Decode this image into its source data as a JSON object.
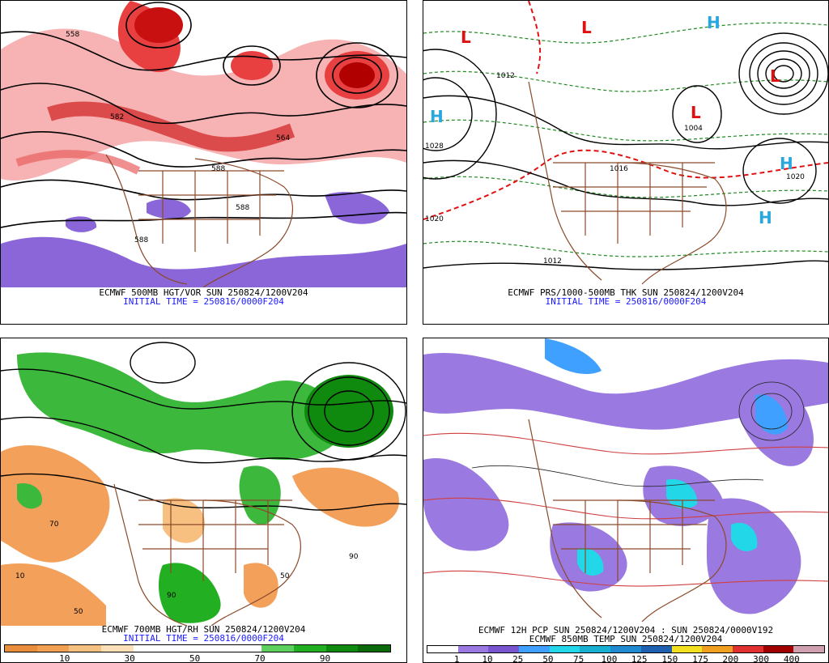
{
  "panels": {
    "top_left": {
      "caption": "ECMWF 500MB HGT/VOR SUN 250824/1200V204",
      "init": "INITIAL TIME = 250816/0000F204",
      "contour_labels": [
        "558",
        "582",
        "564",
        "588",
        "588",
        "588"
      ]
    },
    "top_right": {
      "caption": "ECMWF PRS/1000-500MB THK SUN 250824/1200V204",
      "init": "INITIAL TIME = 250816/0000F204",
      "pressure_labels": [
        "1012",
        "1004",
        "1016",
        "1020",
        "1012",
        "1028",
        "1020"
      ],
      "centers": [
        {
          "type": "L",
          "color": "#e01010"
        },
        {
          "type": "L",
          "color": "#e01010"
        },
        {
          "type": "L",
          "color": "#e01010"
        },
        {
          "type": "L",
          "color": "#e01010"
        },
        {
          "type": "H",
          "color": "#29a8e0"
        },
        {
          "type": "H",
          "color": "#29a8e0"
        },
        {
          "type": "H",
          "color": "#29a8e0"
        },
        {
          "type": "H",
          "color": "#29a8e0"
        }
      ]
    },
    "bottom_left": {
      "caption": "ECMWF 700MB HGT/RH SUN 250824/1200V204",
      "init": "INITIAL TIME = 250816/0000F204",
      "colorbar": {
        "colors": [
          "#e88d3c",
          "#f0a050",
          "#f6c080",
          "#fbe0b8",
          "#ffffff",
          "#ffffff",
          "#ffffff",
          "#ffffff",
          "#5ed05e",
          "#22b022",
          "#0f8a0f",
          "#0a6a0a"
        ],
        "ticks": [
          "10",
          "30",
          "50",
          "70",
          "90"
        ]
      },
      "field_labels": [
        "10",
        "50",
        "90",
        "70",
        "50",
        "90"
      ]
    },
    "bottom_right": {
      "caption": "ECMWF 12H PCP SUN 250824/1200V204 : SUN 250824/0000V192",
      "subcaption": "ECMWF 850MB TEMP SUN 250824/1200V204",
      "colorbar": {
        "colors": [
          "#ffffff",
          "#9a79e0",
          "#7a55d0",
          "#3fa0ff",
          "#22d8e8",
          "#18b0d0",
          "#1f8ad0",
          "#2060b0",
          "#f3e020",
          "#f0a020",
          "#e03030",
          "#a00000",
          "#d0a0b0"
        ],
        "ticks": [
          "1",
          "10",
          "25",
          "50",
          "75",
          "100",
          "125",
          "150",
          "175",
          "200",
          "300",
          "400"
        ]
      }
    }
  }
}
